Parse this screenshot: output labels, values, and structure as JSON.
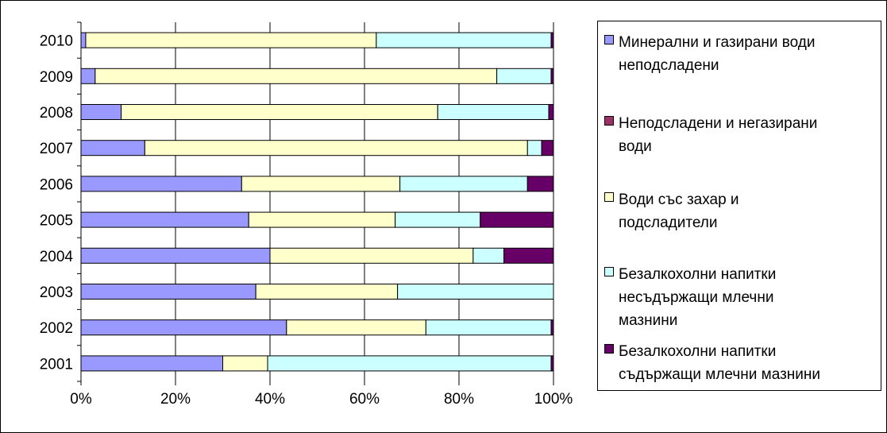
{
  "chart_data": {
    "type": "bar",
    "orientation": "horizontal",
    "stacked": "percent",
    "categories": [
      "2001",
      "2002",
      "2003",
      "2004",
      "2005",
      "2006",
      "2007",
      "2008",
      "2009",
      "2010"
    ],
    "x_ticks": [
      "0%",
      "20%",
      "40%",
      "60%",
      "80%",
      "100%"
    ],
    "xlim": [
      0,
      100
    ],
    "grid": "vertical",
    "legend_position": "right",
    "series": [
      {
        "name": "Минерални и газирани води неподсладени",
        "color": "#9999FF",
        "values": [
          30,
          43.5,
          37,
          40,
          35.5,
          34,
          13.5,
          8.5,
          3,
          1
        ]
      },
      {
        "name": "Неподсладени и негазирани води",
        "color": "#993366",
        "values": [
          0,
          0,
          0,
          0,
          0,
          0,
          0,
          0,
          0,
          0
        ]
      },
      {
        "name": "Води със захар и подсладители",
        "color": "#FFFFCC",
        "values": [
          9.5,
          29.5,
          30,
          43,
          31,
          33.5,
          81,
          67,
          85,
          61.5
        ]
      },
      {
        "name": "Безалкохолни напитки несъдържащи млечни мазнини",
        "color": "#CCFFFF",
        "values": [
          60,
          26.5,
          33,
          6.5,
          18,
          27,
          3,
          23.5,
          11.5,
          37
        ]
      },
      {
        "name": "Безалкохолни напитки съдържащи млечни мазнини",
        "color": "#660066",
        "values": [
          0.5,
          0.5,
          0,
          10.5,
          15.5,
          5.5,
          2.5,
          1,
          0.5,
          0.5
        ]
      }
    ]
  },
  "legend": {
    "items": [
      {
        "line1": "Минерални и газирани води",
        "line2": "неподсладени",
        "line3": ""
      },
      {
        "line1": "Неподсладени и негазирани",
        "line2": "води",
        "line3": ""
      },
      {
        "line1": "Води със захар и",
        "line2": "подсладители",
        "line3": ""
      },
      {
        "line1": "Безалкохолни напитки",
        "line2": "несъдържащи млечни",
        "line3": "мазнини"
      },
      {
        "line1": "Безалкохолни напитки",
        "line2": "съдържащи млечни мазнини",
        "line3": ""
      }
    ]
  }
}
